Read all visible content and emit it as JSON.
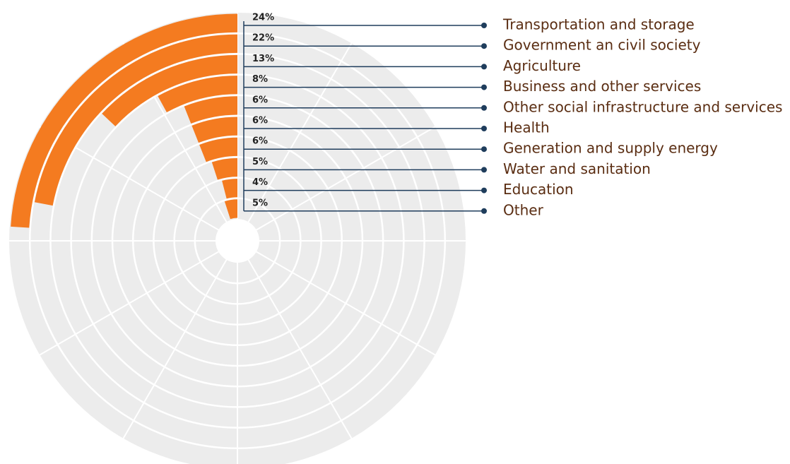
{
  "chart_data": {
    "type": "radial_bar",
    "categories": [
      "Transportation and storage",
      "Government an civil society",
      "Agriculture",
      "Business and other services",
      "Other social infrastructure and services",
      "Health",
      "Generation and supply energy",
      "Water and sanitation",
      "Education",
      "Other"
    ],
    "values": [
      24,
      22,
      13,
      8,
      6,
      6,
      6,
      5,
      4,
      5
    ],
    "value_labels": [
      "24%",
      "22%",
      "13%",
      "8%",
      "6%",
      "6%",
      "6%",
      "5%",
      "4%",
      "5%"
    ],
    "ylim": [
      0,
      100
    ],
    "color": "#f47b20"
  }
}
